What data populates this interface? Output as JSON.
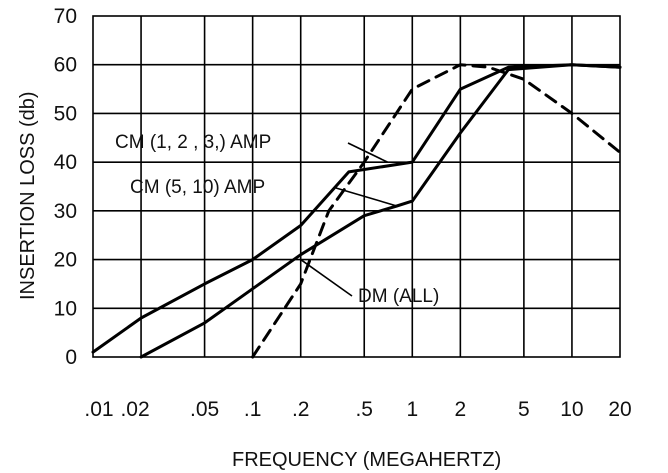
{
  "chart_data": {
    "type": "line",
    "title": "",
    "xlabel": "FREQUENCY    (MEGAHERTZ)",
    "ylabel": "INSERTION LOSS (db)",
    "x_scale": "log",
    "xlim": [
      0.01,
      20
    ],
    "ylim": [
      0,
      70
    ],
    "grid": true,
    "x_tick_labels": [
      {
        "value": 0.01,
        "label": ".01"
      },
      {
        "value": 0.02,
        "label": ".02"
      },
      {
        "value": 0.05,
        "label": ".05"
      },
      {
        "value": 0.1,
        "label": ".1"
      },
      {
        "value": 0.2,
        "label": ".2"
      },
      {
        "value": 0.5,
        "label": ".5"
      },
      {
        "value": 1,
        "label": "1"
      },
      {
        "value": 2,
        "label": "2"
      },
      {
        "value": 5,
        "label": "5"
      },
      {
        "value": 10,
        "label": "10"
      },
      {
        "value": 20,
        "label": "20"
      }
    ],
    "y_tick_labels": [
      {
        "value": 0,
        "label": "0"
      },
      {
        "value": 10,
        "label": "10"
      },
      {
        "value": 20,
        "label": "20"
      },
      {
        "value": 30,
        "label": "30"
      },
      {
        "value": 40,
        "label": "40"
      },
      {
        "value": 50,
        "label": "50"
      },
      {
        "value": 60,
        "label": "60"
      },
      {
        "value": 70,
        "label": "70"
      }
    ],
    "series": [
      {
        "name": "CM (1, 2 , 3,) AMP",
        "style": "solid",
        "points": [
          [
            0.01,
            1
          ],
          [
            0.02,
            8
          ],
          [
            0.05,
            15
          ],
          [
            0.1,
            20
          ],
          [
            0.2,
            27
          ],
          [
            0.4,
            38
          ],
          [
            1,
            40
          ],
          [
            2,
            55
          ],
          [
            4,
            59.5
          ],
          [
            10,
            60
          ],
          [
            20,
            59.5
          ]
        ]
      },
      {
        "name": "CM (5, 10) AMP",
        "style": "solid",
        "points": [
          [
            0.02,
            0
          ],
          [
            0.05,
            7
          ],
          [
            0.1,
            14
          ],
          [
            0.2,
            21
          ],
          [
            0.5,
            29
          ],
          [
            0.8,
            31
          ],
          [
            1,
            32
          ],
          [
            2,
            46
          ],
          [
            4,
            59
          ],
          [
            10,
            60
          ],
          [
            20,
            59.5
          ]
        ]
      },
      {
        "name": "DM (ALL)",
        "style": "dashed",
        "points": [
          [
            0.1,
            0
          ],
          [
            0.2,
            15
          ],
          [
            0.3,
            30
          ],
          [
            0.5,
            40
          ],
          [
            1,
            55
          ],
          [
            2,
            60
          ],
          [
            3,
            59.5
          ],
          [
            5,
            57
          ],
          [
            10,
            50
          ],
          [
            20,
            42
          ]
        ]
      }
    ],
    "annotations": [
      {
        "text": "CM (1, 2 , 3,) AMP",
        "target_series": 0,
        "target_point": [
          0.7,
          40
        ]
      },
      {
        "text": "CM (5, 10) AMP",
        "target_series": 1,
        "target_point": [
          0.8,
          31
        ]
      },
      {
        "text": "DM (ALL)",
        "target_series": 2,
        "target_point": [
          0.2,
          20
        ]
      }
    ]
  }
}
